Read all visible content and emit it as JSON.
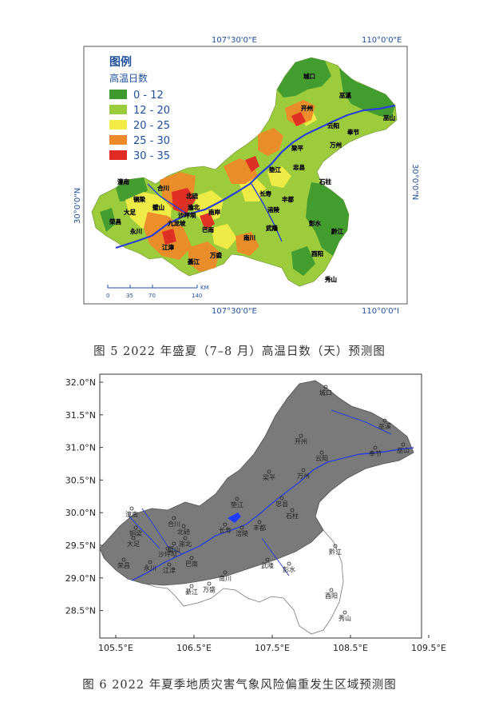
{
  "figure5": {
    "caption": "图 5   2022 年盛夏（7–8 月）高温日数（天）预测图",
    "legend_title": "图例",
    "legend_subtitle": "高温日数",
    "legend": [
      {
        "label": "0 - 12",
        "color": "#3f9a2e"
      },
      {
        "label": "12 - 20",
        "color": "#9ccc3c"
      },
      {
        "label": "20 - 25",
        "color": "#f3ec47"
      },
      {
        "label": "25 - 30",
        "color": "#ed8a2a"
      },
      {
        "label": "30 - 35",
        "color": "#e02a24"
      }
    ],
    "top_labels": [
      "107°30'0\"E",
      "110°0'0\"E"
    ],
    "bottom_labels": [
      "107°30'0\"E",
      "110°0'0\"I"
    ],
    "left_label": "30°0'0\"N",
    "right_label": "30°0'0\"N",
    "scale_bar": {
      "unit": "KM",
      "ticks": [
        "0",
        "35",
        "70",
        "140"
      ]
    },
    "places": [
      "城口",
      "巫溪",
      "开州",
      "云阳",
      "奉节",
      "巫山",
      "梁平",
      "万州",
      "垫江",
      "忠县",
      "石柱",
      "长寿",
      "涪陵",
      "丰都",
      "潼南",
      "合川",
      "大足",
      "铜梁",
      "荣昌",
      "永川",
      "璧山",
      "北碚",
      "渝北",
      "沙坪坝",
      "南岸",
      "九龙坡",
      "巴南",
      "江津",
      "綦江",
      "万盛",
      "南川",
      "武隆",
      "彭水",
      "黔江",
      "酉阳",
      "秀山"
    ]
  },
  "figure6": {
    "caption": "图 6   2022 年夏季地质灾害气象风险偏重发生区域预测图",
    "y_ticks": [
      "32.0°N",
      "31.5°N",
      "31.0°N",
      "30.5°N",
      "30.0°N",
      "29.5°N",
      "29.0°N",
      "28.5°N"
    ],
    "x_ticks": [
      "105.5°E",
      "106.5°E",
      "107.5°E",
      "108.5°E",
      "109.5°E"
    ],
    "places": [
      "城口",
      "巫溪",
      "开州",
      "云阳",
      "奉节",
      "巫山",
      "梁平",
      "万州",
      "垫江",
      "忠县",
      "石柱",
      "长寿",
      "涪陵",
      "丰都",
      "潼南",
      "合川",
      "北碚",
      "铜梁",
      "大足",
      "璧山",
      "渝北",
      "沙坪坝",
      "荣昌",
      "永川",
      "江津",
      "巴南",
      "南川",
      "綦江",
      "万盛",
      "武隆",
      "彭水",
      "黔江",
      "酉阳",
      "秀山"
    ],
    "colors": {
      "risk": "#7a7a7a",
      "river": "#2a3fd6",
      "lake": "#1e3cff"
    }
  }
}
